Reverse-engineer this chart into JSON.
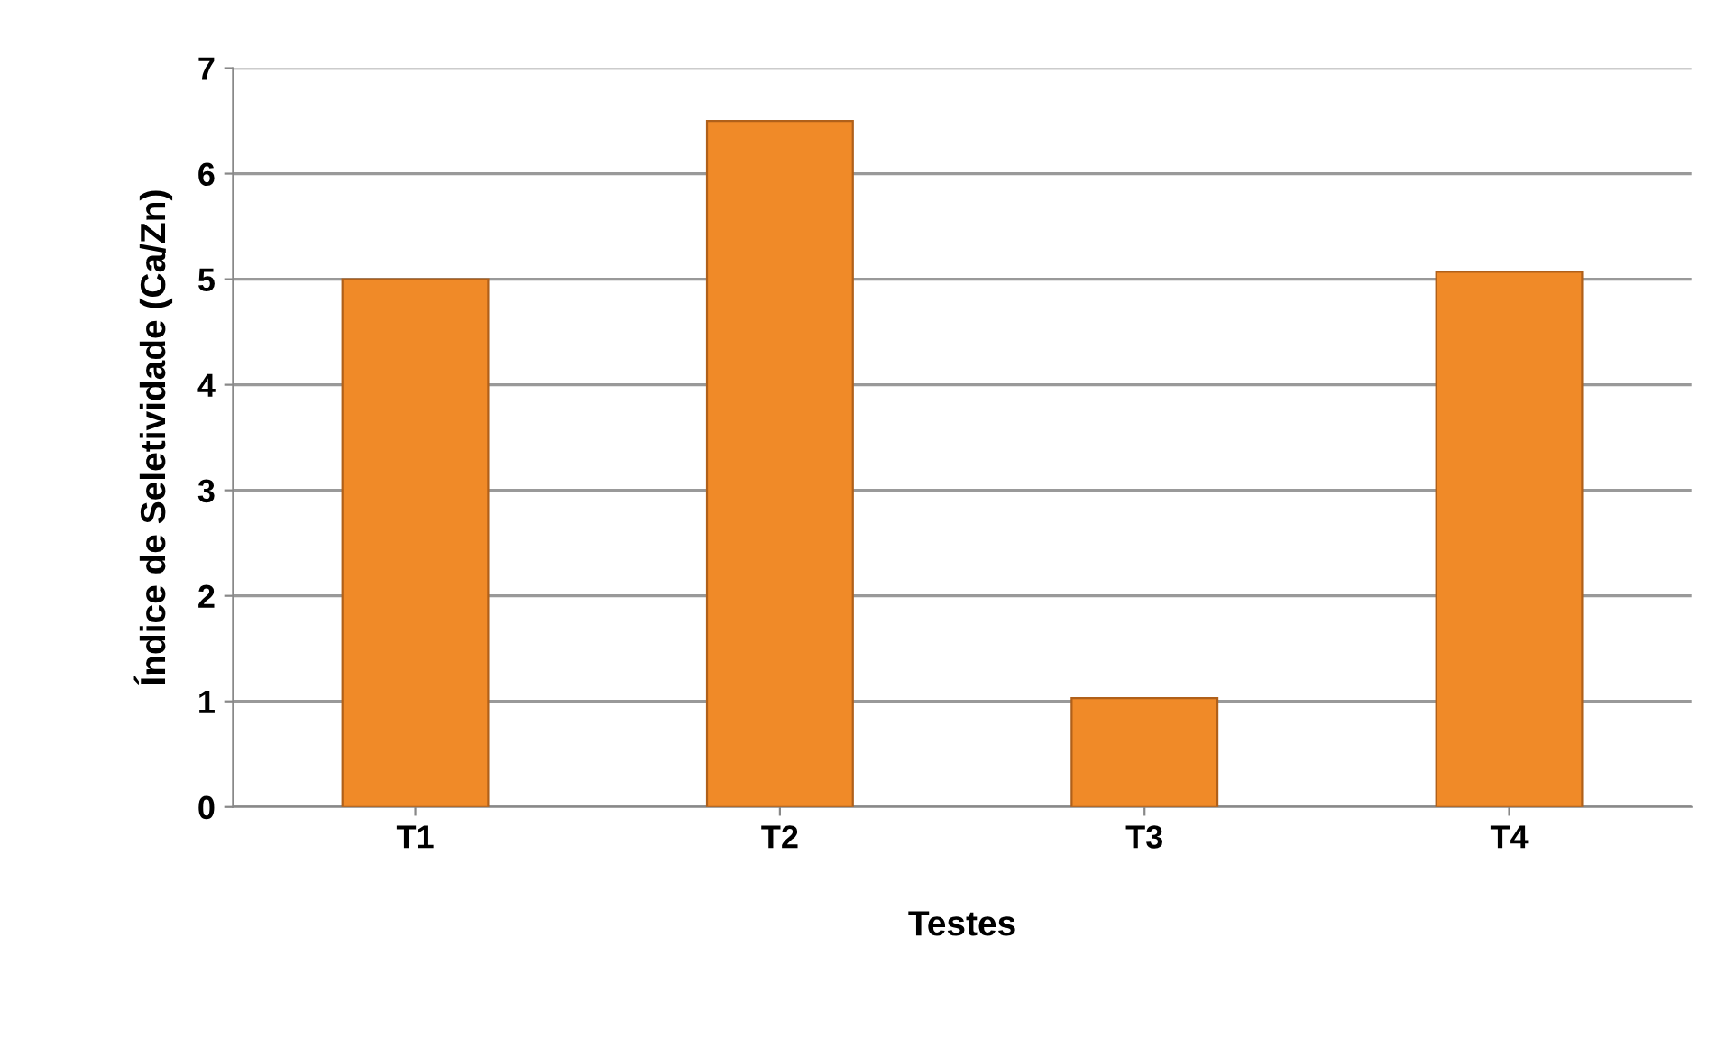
{
  "chart_data": {
    "type": "bar",
    "xlabel": "Testes",
    "ylabel": "Índice de Seletividade (Ca/Zn)",
    "categories": [
      "T1",
      "T2",
      "T3",
      "T4"
    ],
    "values": [
      5.0,
      6.5,
      1.03,
      5.07
    ],
    "color": "#f08a28",
    "ylim": [
      0,
      7
    ],
    "yticks": [
      0,
      1,
      2,
      3,
      4,
      5,
      6,
      7
    ],
    "grid": "y",
    "legend": false
  }
}
